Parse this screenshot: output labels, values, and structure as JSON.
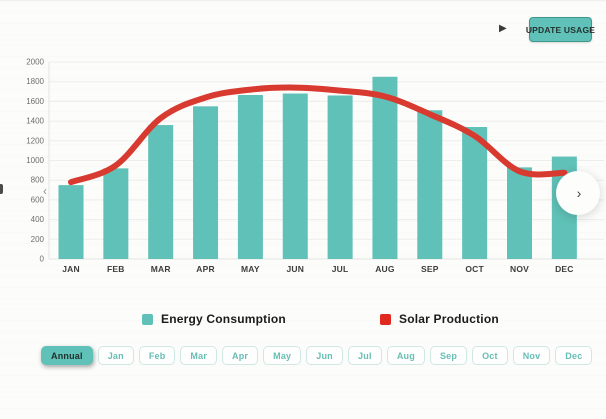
{
  "header": {
    "play_label": "▶",
    "update_button_label": "UPDATE USAGE"
  },
  "chart_data": {
    "type": "bar",
    "title": "",
    "xlabel": "",
    "ylabel": "",
    "categories": [
      "JAN",
      "FEB",
      "MAR",
      "APR",
      "MAY",
      "JUN",
      "JUL",
      "AUG",
      "SEP",
      "OCT",
      "NOV",
      "DEC"
    ],
    "series": [
      {
        "name": "Energy Consumption",
        "type": "bar",
        "color": "#5fc1b7",
        "values": [
          750,
          920,
          1360,
          1550,
          1665,
          1680,
          1660,
          1850,
          1510,
          1340,
          930,
          1040
        ]
      },
      {
        "name": "Solar Production",
        "type": "line",
        "color": "#d93a30",
        "values": [
          780,
          950,
          1430,
          1640,
          1720,
          1740,
          1710,
          1650,
          1470,
          1250,
          890,
          875
        ]
      }
    ],
    "ylim": [
      0,
      2000
    ],
    "ytick_step": 200,
    "grid": true,
    "legend_position": "bottom"
  },
  "carousel": {
    "prev_icon": "‹",
    "next_icon": "›"
  },
  "legend": [
    {
      "label": "Energy Consumption",
      "color": "#5fc1b7"
    },
    {
      "label": "Solar Production",
      "color": "#e02a1f"
    }
  ],
  "filters": {
    "active": "Annual",
    "items": [
      "Annual",
      "Jan",
      "Feb",
      "Mar",
      "Apr",
      "May",
      "Jun",
      "Jul",
      "Aug",
      "Sep",
      "Oct",
      "Nov",
      "Dec"
    ]
  }
}
